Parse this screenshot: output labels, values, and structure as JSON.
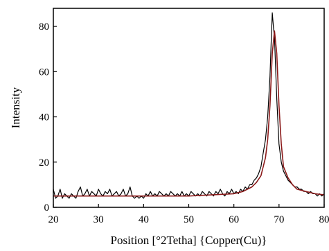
{
  "chart_data": {
    "type": "line",
    "title": "",
    "xlabel": "Position [°2Tetha] {Copper(Cu)}",
    "ylabel": "Intensity",
    "xlim": [
      20,
      80
    ],
    "ylim": [
      0,
      88
    ],
    "xticks": [
      20,
      30,
      40,
      50,
      60,
      70,
      80
    ],
    "yticks": [
      0,
      20,
      40,
      60,
      80
    ],
    "grid": false,
    "legend": "none",
    "colors": {
      "measured": "#000000",
      "fit": "#8b1a1a"
    },
    "series": [
      {
        "x": [
          20,
          20.5,
          21,
          21.5,
          22,
          22.5,
          23,
          23.5,
          24,
          24.5,
          25,
          25.5,
          26,
          26.5,
          27,
          27.5,
          28,
          28.5,
          29,
          29.5,
          30,
          30.5,
          31,
          31.5,
          32,
          32.5,
          33,
          33.5,
          34,
          34.5,
          35,
          35.5,
          36,
          36.5,
          37,
          37.5,
          38,
          38.5,
          39,
          39.5,
          40,
          40.5,
          41,
          41.5,
          42,
          42.5,
          43,
          43.5,
          44,
          44.5,
          45,
          45.5,
          46,
          46.5,
          47,
          47.5,
          48,
          48.5,
          49,
          49.5,
          50,
          50.5,
          51,
          51.5,
          52,
          52.5,
          53,
          53.5,
          54,
          54.5,
          55,
          55.5,
          56,
          56.5,
          57,
          57.5,
          58,
          58.5,
          59,
          59.5,
          60,
          60.5,
          61,
          61.5,
          62,
          62.5,
          63,
          63.5,
          64,
          64.5,
          65,
          65.5,
          66,
          66.5,
          67,
          67.5,
          68,
          68.25,
          68.5,
          68.75,
          69,
          69.25,
          69.5,
          69.75,
          70,
          70.5,
          71,
          71.5,
          72,
          72.5,
          73,
          73.5,
          74,
          74.5,
          75,
          75.5,
          76,
          76.5,
          77,
          77.5,
          78,
          78.5,
          79,
          79.5,
          80
        ],
        "values": [
          8,
          4,
          5,
          8,
          4,
          6,
          5,
          4,
          6,
          5,
          4,
          7,
          9,
          5,
          6,
          8,
          5,
          7,
          6,
          5,
          8,
          6,
          5,
          7,
          6,
          8,
          5,
          6,
          7,
          5,
          6,
          8,
          5,
          6,
          9,
          5,
          4,
          5,
          4,
          5,
          4,
          6,
          5,
          7,
          5,
          6,
          5,
          7,
          6,
          5,
          6,
          5,
          7,
          6,
          5,
          6,
          5,
          7,
          5,
          6,
          5,
          7,
          6,
          5,
          6,
          5,
          7,
          6,
          5,
          7,
          6,
          5,
          7,
          6,
          8,
          6,
          5,
          7,
          6,
          8,
          6,
          7,
          6,
          8,
          7,
          9,
          8,
          10,
          10,
          12,
          13,
          15,
          18,
          24,
          30,
          40,
          58,
          72,
          86,
          80,
          75,
          62,
          48,
          38,
          28,
          20,
          16,
          14,
          12,
          11,
          10,
          9,
          9,
          8,
          8,
          7,
          7,
          6,
          7,
          6,
          6,
          5,
          6,
          5,
          6
        ]
      },
      {
        "x": [
          20,
          25,
          30,
          35,
          40,
          45,
          50,
          55,
          60,
          62,
          64,
          65,
          66,
          67,
          67.5,
          68,
          68.5,
          69,
          69.5,
          70,
          70.5,
          71,
          72,
          73,
          74,
          76,
          78,
          80
        ],
        "values": [
          5,
          5,
          5,
          5,
          5,
          5,
          5,
          5.5,
          6,
          7,
          9,
          11,
          14,
          22,
          30,
          45,
          68,
          78,
          68,
          45,
          28,
          18,
          13,
          10,
          8,
          7,
          6,
          5.5
        ]
      }
    ]
  }
}
